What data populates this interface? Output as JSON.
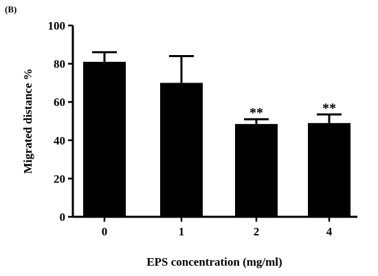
{
  "panel_label": "(B)",
  "chart_data": {
    "type": "bar",
    "categories": [
      "0",
      "1",
      "2",
      "4"
    ],
    "values": [
      81,
      70,
      48.5,
      49
    ],
    "errors": [
      5,
      14,
      2.5,
      4.5
    ],
    "annotations": [
      "",
      "",
      "**",
      "**"
    ],
    "xlabel": "EPS concentration (mg/ml)",
    "ylabel": "Migrated distance %",
    "ylim": [
      0,
      100
    ],
    "yticks": [
      "0",
      "20",
      "40",
      "60",
      "80",
      "100"
    ],
    "grid": false,
    "bar_color": "#000000"
  }
}
